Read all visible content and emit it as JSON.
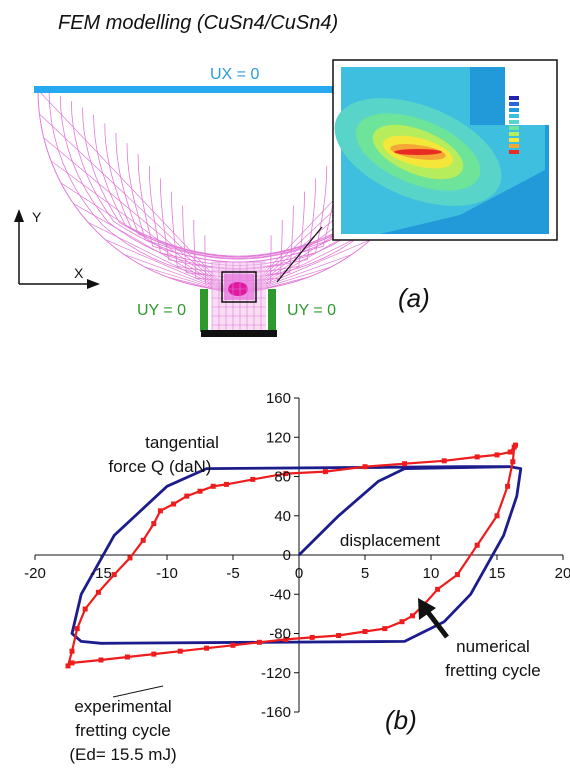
{
  "figure": {
    "title": "FEM modelling (CuSn4/CuSn4)"
  },
  "panel_a": {
    "label": "(a)",
    "bc_top": "UX = 0",
    "bc_left": "UY = 0",
    "bc_right": "UY = 0",
    "axis_y": "Y",
    "axis_x": "X",
    "colors": {
      "mesh": "#e27ad8",
      "top_bar": "#27a9ef",
      "side_bars": "#2e9a2e",
      "bc_text_top": "#2a9ddb",
      "bc_text_side": "#2e9a2e"
    }
  },
  "chart_data": {
    "type": "line",
    "label": "(b)",
    "xlim": [
      -20,
      20
    ],
    "ylim": [
      -160,
      160
    ],
    "x_ticks": [
      -20,
      -15,
      -10,
      -5,
      0,
      5,
      10,
      15,
      20
    ],
    "y_ticks": [
      -160,
      -120,
      -80,
      -40,
      0,
      40,
      80,
      120,
      160
    ],
    "annotations": {
      "ylabel_line1": "tangential",
      "ylabel_line2": "force Q (daN)",
      "xlabel": "displacement",
      "numerical_line1": "numerical",
      "numerical_line2": "fretting cycle",
      "experimental_line1": "experimental",
      "experimental_line2": "fretting cycle",
      "experimental_line3": "(Ed= 15.5 mJ)"
    },
    "colors": {
      "numerical": "#1c1c8c",
      "experimental": "#ee1c1c"
    },
    "series": [
      {
        "key": "numerical",
        "x": [
          0,
          3,
          6,
          8,
          16,
          16.8,
          16.5,
          15.5,
          13,
          11,
          8,
          -15,
          -16.5,
          -17.2,
          -16.5,
          -14,
          -10,
          -7,
          12.5,
          16,
          16.8
        ],
        "y": [
          0,
          40,
          75,
          88,
          90,
          88,
          60,
          20,
          -40,
          -68,
          -88,
          -90,
          -88,
          -80,
          -40,
          20,
          70,
          88,
          90,
          90,
          88
        ]
      },
      {
        "key": "experimental",
        "x": [
          16.3,
          16.2,
          15.8,
          15,
          13.5,
          12,
          10.5,
          9.5,
          8.6,
          7.8,
          6.5,
          5,
          3,
          1,
          -1,
          -3,
          -5,
          -7,
          -9,
          -11,
          -13,
          -15,
          -17.2,
          -17.5,
          -17.2,
          -16.8,
          -16.2,
          -15.2,
          -14,
          -12.8,
          -11.8,
          -11,
          -10.5,
          -9.5,
          -8.5,
          -7.5,
          -6.5,
          -5.5,
          -3.5,
          -1,
          2,
          5,
          8,
          11,
          13.5,
          15,
          16,
          16.4
        ],
        "y": [
          110,
          95,
          70,
          40,
          10,
          -20,
          -35,
          -50,
          -62,
          -68,
          -75,
          -78,
          -82,
          -84,
          -86,
          -89,
          -92,
          -95,
          -98,
          -101,
          -104,
          -107,
          -110,
          -113,
          -98,
          -75,
          -55,
          -38,
          -20,
          -3,
          15,
          32,
          45,
          52,
          60,
          65,
          70,
          72,
          77,
          83,
          85,
          90,
          93,
          96,
          100,
          102,
          105,
          112
        ]
      }
    ]
  }
}
